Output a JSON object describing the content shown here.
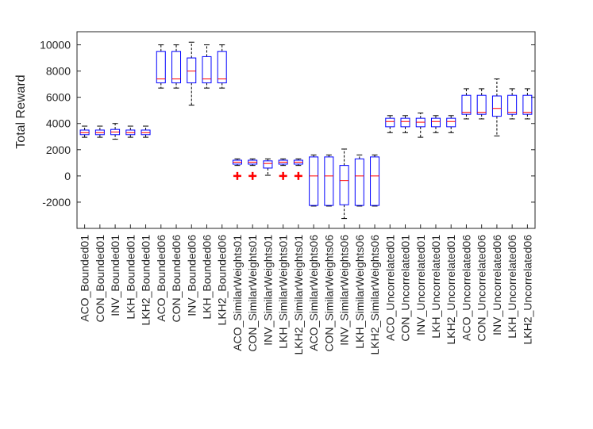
{
  "chart_data": {
    "type": "box",
    "title": "",
    "xlabel": "",
    "ylabel": "Total Reward",
    "ylim": [
      -4000,
      11000
    ],
    "yticks": [
      -2000,
      0,
      2000,
      4000,
      6000,
      8000,
      10000
    ],
    "grid": false,
    "colors": {
      "box": "#0000ff",
      "median": "#ff0000",
      "whisker": "#000000",
      "outlier": "#ff0000",
      "axis": "#262626"
    },
    "categories": [
      "ACO_Bounded01",
      "CON_Bounded01",
      "INV_Bounded01",
      "LKH_Bounded01",
      "LKH2_Bounded01",
      "ACO_Bounded06",
      "CON_Bounded06",
      "INV_Bounded06",
      "LKH_Bounded06",
      "LKH2_Bounded06",
      "ACO_SimilarWeights01",
      "CON_SimilarWeights01",
      "INV_SimilarWeights01",
      "LKH_SimilarWeights01",
      "LKH2_SimilarWeights01",
      "ACO_SimilarWeights06",
      "CON_SimilarWeights06",
      "INV_SimilarWeights06",
      "LKH_SimilarWeights06",
      "LKH2_SimilarWeights06",
      "ACO_Uncorrelated01",
      "CON_Uncorrelated01",
      "INV_Uncorrelated01",
      "LKH_Uncorrelated01",
      "LKH2_Uncorrelated01",
      "ACO_Uncorrelated06",
      "CON_Uncorrelated06",
      "INV_Uncorrelated06",
      "LKH_Uncorrelated06",
      "LKH2_Uncorrelated06"
    ],
    "boxes": [
      {
        "whisker_low": 2950,
        "q1": 3150,
        "median": 3300,
        "q3": 3500,
        "whisker_high": 3800,
        "outliers": []
      },
      {
        "whisker_low": 2950,
        "q1": 3150,
        "median": 3300,
        "q3": 3500,
        "whisker_high": 3800,
        "outliers": []
      },
      {
        "whisker_low": 2800,
        "q1": 3150,
        "median": 3350,
        "q3": 3550,
        "whisker_high": 4000,
        "outliers": []
      },
      {
        "whisker_low": 2950,
        "q1": 3150,
        "median": 3300,
        "q3": 3500,
        "whisker_high": 3800,
        "outliers": []
      },
      {
        "whisker_low": 2950,
        "q1": 3150,
        "median": 3300,
        "q3": 3500,
        "whisker_high": 3800,
        "outliers": []
      },
      {
        "whisker_low": 6700,
        "q1": 7100,
        "median": 7400,
        "q3": 9500,
        "whisker_high": 10000,
        "outliers": []
      },
      {
        "whisker_low": 6700,
        "q1": 7100,
        "median": 7400,
        "q3": 9500,
        "whisker_high": 10000,
        "outliers": []
      },
      {
        "whisker_low": 5400,
        "q1": 7100,
        "median": 8000,
        "q3": 9000,
        "whisker_high": 10200,
        "outliers": []
      },
      {
        "whisker_low": 6700,
        "q1": 7100,
        "median": 7400,
        "q3": 9100,
        "whisker_high": 10000,
        "outliers": []
      },
      {
        "whisker_low": 6700,
        "q1": 7100,
        "median": 7400,
        "q3": 9500,
        "whisker_high": 10000,
        "outliers": []
      },
      {
        "whisker_low": 800,
        "q1": 900,
        "median": 1050,
        "q3": 1200,
        "whisker_high": 1300,
        "outliers": [
          0
        ]
      },
      {
        "whisker_low": 800,
        "q1": 900,
        "median": 1050,
        "q3": 1200,
        "whisker_high": 1300,
        "outliers": [
          0
        ]
      },
      {
        "whisker_low": 50,
        "q1": 600,
        "median": 950,
        "q3": 1150,
        "whisker_high": 1300,
        "outliers": []
      },
      {
        "whisker_low": 800,
        "q1": 900,
        "median": 1050,
        "q3": 1200,
        "whisker_high": 1300,
        "outliers": [
          0
        ]
      },
      {
        "whisker_low": 800,
        "q1": 900,
        "median": 1050,
        "q3": 1200,
        "whisker_high": 1300,
        "outliers": [
          0
        ]
      },
      {
        "whisker_low": -2300,
        "q1": -2250,
        "median": 0,
        "q3": 1450,
        "whisker_high": 1600,
        "outliers": []
      },
      {
        "whisker_low": -2300,
        "q1": -2250,
        "median": 0,
        "q3": 1450,
        "whisker_high": 1600,
        "outliers": []
      },
      {
        "whisker_low": -3250,
        "q1": -2200,
        "median": -350,
        "q3": 800,
        "whisker_high": 2050,
        "outliers": []
      },
      {
        "whisker_low": -2300,
        "q1": -2250,
        "median": 0,
        "q3": 1300,
        "whisker_high": 1600,
        "outliers": []
      },
      {
        "whisker_low": -2300,
        "q1": -2250,
        "median": 0,
        "q3": 1450,
        "whisker_high": 1600,
        "outliers": []
      },
      {
        "whisker_low": 3300,
        "q1": 3750,
        "median": 4150,
        "q3": 4400,
        "whisker_high": 4600,
        "outliers": []
      },
      {
        "whisker_low": 3300,
        "q1": 3750,
        "median": 4150,
        "q3": 4400,
        "whisker_high": 4600,
        "outliers": []
      },
      {
        "whisker_low": 2950,
        "q1": 3750,
        "median": 4100,
        "q3": 4400,
        "whisker_high": 4800,
        "outliers": []
      },
      {
        "whisker_low": 3300,
        "q1": 3750,
        "median": 4150,
        "q3": 4400,
        "whisker_high": 4600,
        "outliers": []
      },
      {
        "whisker_low": 3300,
        "q1": 3750,
        "median": 4150,
        "q3": 4400,
        "whisker_high": 4600,
        "outliers": []
      },
      {
        "whisker_low": 4350,
        "q1": 4700,
        "median": 4850,
        "q3": 6150,
        "whisker_high": 6650,
        "outliers": []
      },
      {
        "whisker_low": 4350,
        "q1": 4700,
        "median": 4850,
        "q3": 6150,
        "whisker_high": 6650,
        "outliers": []
      },
      {
        "whisker_low": 3050,
        "q1": 4550,
        "median": 5150,
        "q3": 6100,
        "whisker_high": 7400,
        "outliers": []
      },
      {
        "whisker_low": 4350,
        "q1": 4700,
        "median": 4850,
        "q3": 6150,
        "whisker_high": 6650,
        "outliers": []
      },
      {
        "whisker_low": 4350,
        "q1": 4700,
        "median": 4850,
        "q3": 6150,
        "whisker_high": 6650,
        "outliers": []
      }
    ]
  }
}
